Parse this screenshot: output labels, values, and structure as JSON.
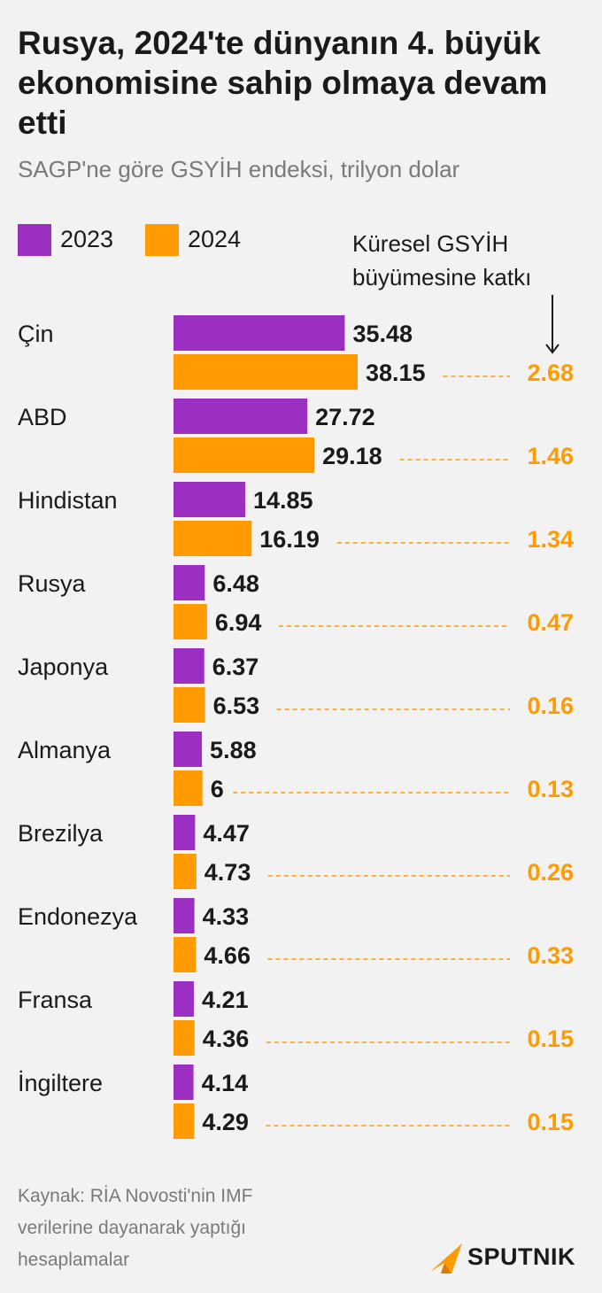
{
  "title": "Rusya, 2024'te dünyanın 4. büyük ekonomisine sahip olmaya devam etti",
  "subtitle": "SAGP'ne göre GSYİH endeksi, trilyon dolar",
  "legend": [
    {
      "label": "2023",
      "color": "#9b2fc2"
    },
    {
      "label": "2024",
      "color": "#ff9a00"
    }
  ],
  "contrib_header": {
    "line1": "Küresel GSYİH",
    "line2": "büyümesine katkı"
  },
  "source": {
    "line1": "Kaynak: RİA Novosti'nin IMF",
    "line2": "verilerine dayanarak yaptığı",
    "line3": "hesaplamalar"
  },
  "logo": {
    "text": "SPUTNIK",
    "icon": "sputnik-arrow-icon"
  },
  "chart_data": {
    "type": "bar",
    "orientation": "horizontal",
    "categories": [
      "Çin",
      "ABD",
      "Hindistan",
      "Rusya",
      "Japonya",
      "Almanya",
      "Brezilya",
      "Endonezya",
      "Fransa",
      "İngiltere"
    ],
    "series": [
      {
        "name": "2023",
        "color": "#9b2fc2",
        "values": [
          35.48,
          27.72,
          14.85,
          6.48,
          6.37,
          5.88,
          4.47,
          4.33,
          4.21,
          4.14
        ],
        "labels": [
          "35.48",
          "27.72",
          "14.85",
          "6.48",
          "6.37",
          "5.88",
          "4.47",
          "4.33",
          "4.21",
          "4.14"
        ]
      },
      {
        "name": "2024",
        "color": "#ff9a00",
        "values": [
          38.15,
          29.18,
          16.19,
          6.94,
          6.53,
          6,
          4.73,
          4.66,
          4.36,
          4.29
        ],
        "labels": [
          "38.15",
          "29.18",
          "16.19",
          "6.94",
          "6.53",
          "6",
          "4.73",
          "4.66",
          "4.36",
          "4.29"
        ]
      }
    ],
    "contribution": {
      "values": [
        2.68,
        1.46,
        1.34,
        0.47,
        0.16,
        0.13,
        0.26,
        0.33,
        0.15,
        0.15
      ],
      "labels": [
        "2.68",
        "1.46",
        "1.34",
        "0.47",
        "0.16",
        "0.13",
        "0.26",
        "0.33",
        "0.15",
        "0.15"
      ],
      "color": "#ff9a00"
    },
    "xlim": [
      0,
      38.15
    ],
    "grid": false,
    "legend_position": "top-left"
  }
}
